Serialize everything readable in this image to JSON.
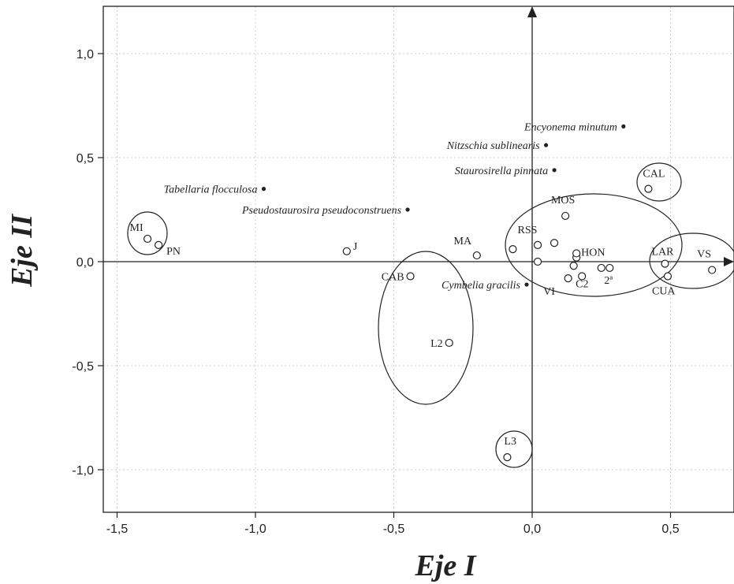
{
  "chart_data": {
    "type": "scatter",
    "xlabel": "Eje I",
    "ylabel": "Eje II",
    "xlim": [
      -1.55,
      0.73
    ],
    "ylim": [
      -1.2,
      1.22
    ],
    "grid": true,
    "x_ticks": [
      -1.5,
      -1.0,
      -0.5,
      0.0,
      0.5
    ],
    "x_tick_labels": [
      "-1,5",
      "-1,0",
      "-0,5",
      "0,0",
      "0,5"
    ],
    "y_ticks": [
      -1.0,
      -0.5,
      0.0,
      0.5,
      1.0
    ],
    "y_tick_labels": [
      "-1,0",
      "-0,5",
      "0,0",
      "0,5",
      "1,0"
    ],
    "sites": [
      {
        "label": "MI",
        "x": -1.39,
        "y": 0.11
      },
      {
        "label": "PN",
        "x": -1.35,
        "y": 0.08
      },
      {
        "label": "J",
        "x": -0.67,
        "y": 0.05
      },
      {
        "label": "CAB",
        "x": -0.44,
        "y": -0.07
      },
      {
        "label": "L2",
        "x": -0.3,
        "y": -0.39
      },
      {
        "label": "MA",
        "x": -0.2,
        "y": 0.03
      },
      {
        "label": "",
        "x": -0.07,
        "y": 0.06
      },
      {
        "label": "RSS",
        "x": 0.02,
        "y": 0.08
      },
      {
        "label": "",
        "x": 0.02,
        "y": 0.0
      },
      {
        "label": "",
        "x": 0.08,
        "y": 0.09
      },
      {
        "label": "MOS",
        "x": 0.12,
        "y": 0.22
      },
      {
        "label": "",
        "x": 0.13,
        "y": -0.08
      },
      {
        "label": "",
        "x": 0.15,
        "y": -0.02
      },
      {
        "label": "",
        "x": 0.16,
        "y": 0.02
      },
      {
        "label": "HON",
        "x": 0.16,
        "y": 0.04
      },
      {
        "label": "C2",
        "x": 0.18,
        "y": -0.07
      },
      {
        "label": "",
        "x": 0.25,
        "y": -0.03
      },
      {
        "label": "2ª",
        "x": 0.28,
        "y": -0.03
      },
      {
        "label": "CAL",
        "x": 0.42,
        "y": 0.35
      },
      {
        "label": "LAR",
        "x": 0.48,
        "y": -0.01
      },
      {
        "label": "CUA",
        "x": 0.49,
        "y": -0.07
      },
      {
        "label": "VS",
        "x": 0.65,
        "y": -0.04
      },
      {
        "label": "L3",
        "x": -0.09,
        "y": -0.94
      },
      {
        "label": "VI",
        "x": 0.1,
        "y": -0.11
      }
    ],
    "species": [
      {
        "label": "Encyonema minutum",
        "x": 0.33,
        "y": 0.65
      },
      {
        "label": "Nitzschia sublinearis",
        "x": 0.05,
        "y": 0.56
      },
      {
        "label": "Staurosirella pinnata",
        "x": 0.08,
        "y": 0.44
      },
      {
        "label": "Tabellaria flocculosa",
        "x": -0.97,
        "y": 0.35
      },
      {
        "label": "Pseudostaurosira pseudoconstruens",
        "x": -0.45,
        "y": 0.25
      },
      {
        "label": "Cymbelia gracilis",
        "x": -0.02,
        "y": -0.11
      }
    ]
  }
}
